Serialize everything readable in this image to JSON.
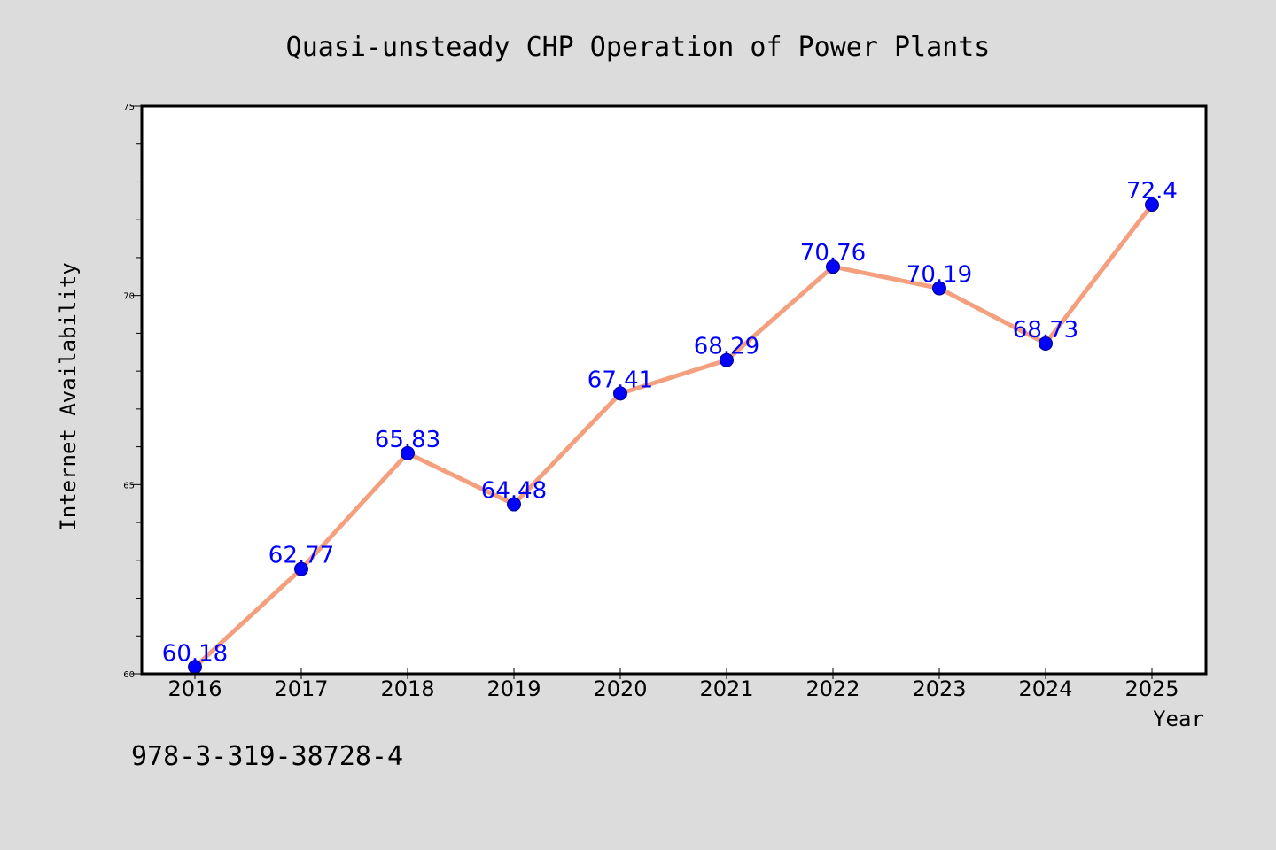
{
  "chart_data": {
    "type": "line",
    "title": "Quasi-unsteady CHP Operation of Power Plants",
    "xlabel": "Year",
    "ylabel": "Internet Availability",
    "x": [
      "2016",
      "2017",
      "2018",
      "2019",
      "2020",
      "2021",
      "2022",
      "2023",
      "2024",
      "2025"
    ],
    "series": [
      {
        "values": [
          60.18,
          62.77,
          65.83,
          64.48,
          67.41,
          68.29,
          70.76,
          70.19,
          68.73,
          72.4
        ]
      }
    ],
    "data_labels": [
      "60.18",
      "62.77",
      "65.83",
      "64.48",
      "67.41",
      "68.29",
      "70.76",
      "70.19",
      "68.73",
      "72.4"
    ],
    "ylim": [
      60,
      75
    ],
    "yticks": [
      "60",
      "65",
      "70",
      "75"
    ],
    "yminor_step": 1,
    "grid": false,
    "legend": "none",
    "colors": {
      "background": "#dcdcdc",
      "plot_background": "#ffffff",
      "line": "#f4a07f",
      "marker": "#0000ff",
      "data_label": "#0000ff",
      "axes": "#000000"
    }
  },
  "footer": {
    "isbn": "978-3-319-38728-4"
  }
}
